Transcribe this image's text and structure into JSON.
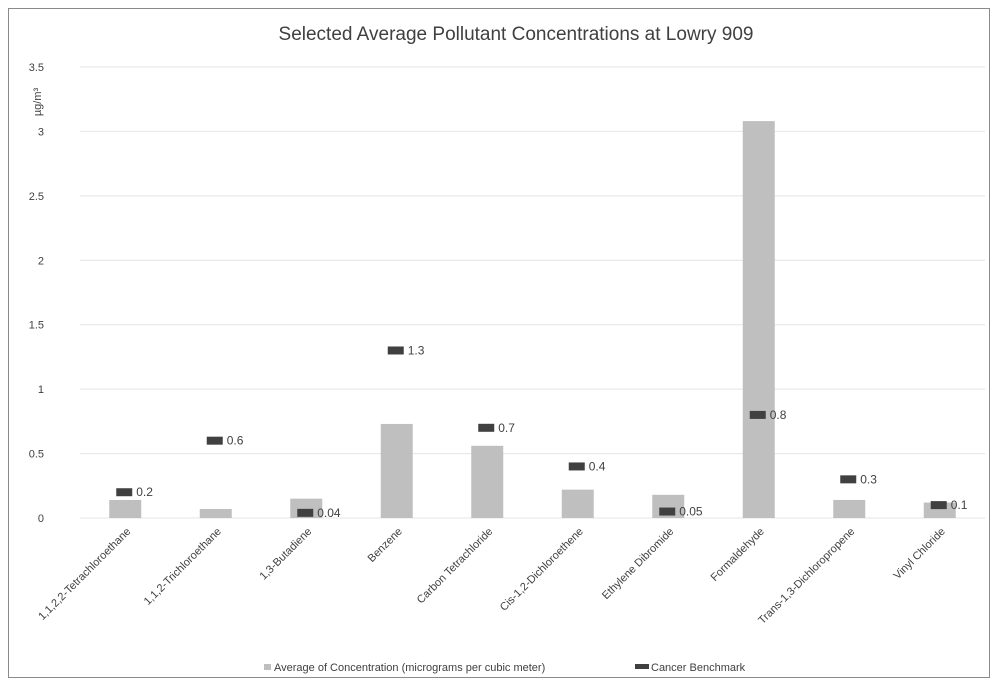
{
  "chart_data": {
    "type": "bar",
    "title": "Selected Average Pollutant Concentrations at Lowry 909",
    "ylabel": "µg/m³",
    "ylim": [
      0,
      3.5
    ],
    "yticks": [
      "0",
      "0.5",
      "1",
      "1.5",
      "2",
      "2.5",
      "3",
      "3.5"
    ],
    "grid": true,
    "legend_position": "bottom",
    "categories": [
      "1,1,2,2-Tetrachloroethane",
      "1,1,2-Trichloroethane",
      "1,3-Butadiene",
      "Benzene",
      "Carbon Tetrachloride",
      "Cis-1,2-Dichloroethene",
      "Ethylene Dibromide",
      "Formaldehyde",
      "Trans-1,3-Dichloropropene",
      "Vinyl Chloride"
    ],
    "series": [
      {
        "name": "Average of Concentration (micrograms per cubic meter)",
        "type": "bar",
        "color": "#bfbfbf",
        "values": [
          0.14,
          0.07,
          0.15,
          0.73,
          0.56,
          0.22,
          0.18,
          3.08,
          0.14,
          0.12
        ]
      },
      {
        "name": "Cancer Benchmark",
        "type": "marker",
        "color": "#404040",
        "values": [
          0.2,
          0.6,
          0.04,
          1.3,
          0.7,
          0.4,
          0.05,
          0.8,
          0.3,
          0.1
        ],
        "labels": [
          "0.2",
          "0.6",
          "0.04",
          "1.3",
          "0.7",
          "0.4",
          "0.05",
          "0.8",
          "0.3",
          "0.1"
        ]
      }
    ]
  }
}
